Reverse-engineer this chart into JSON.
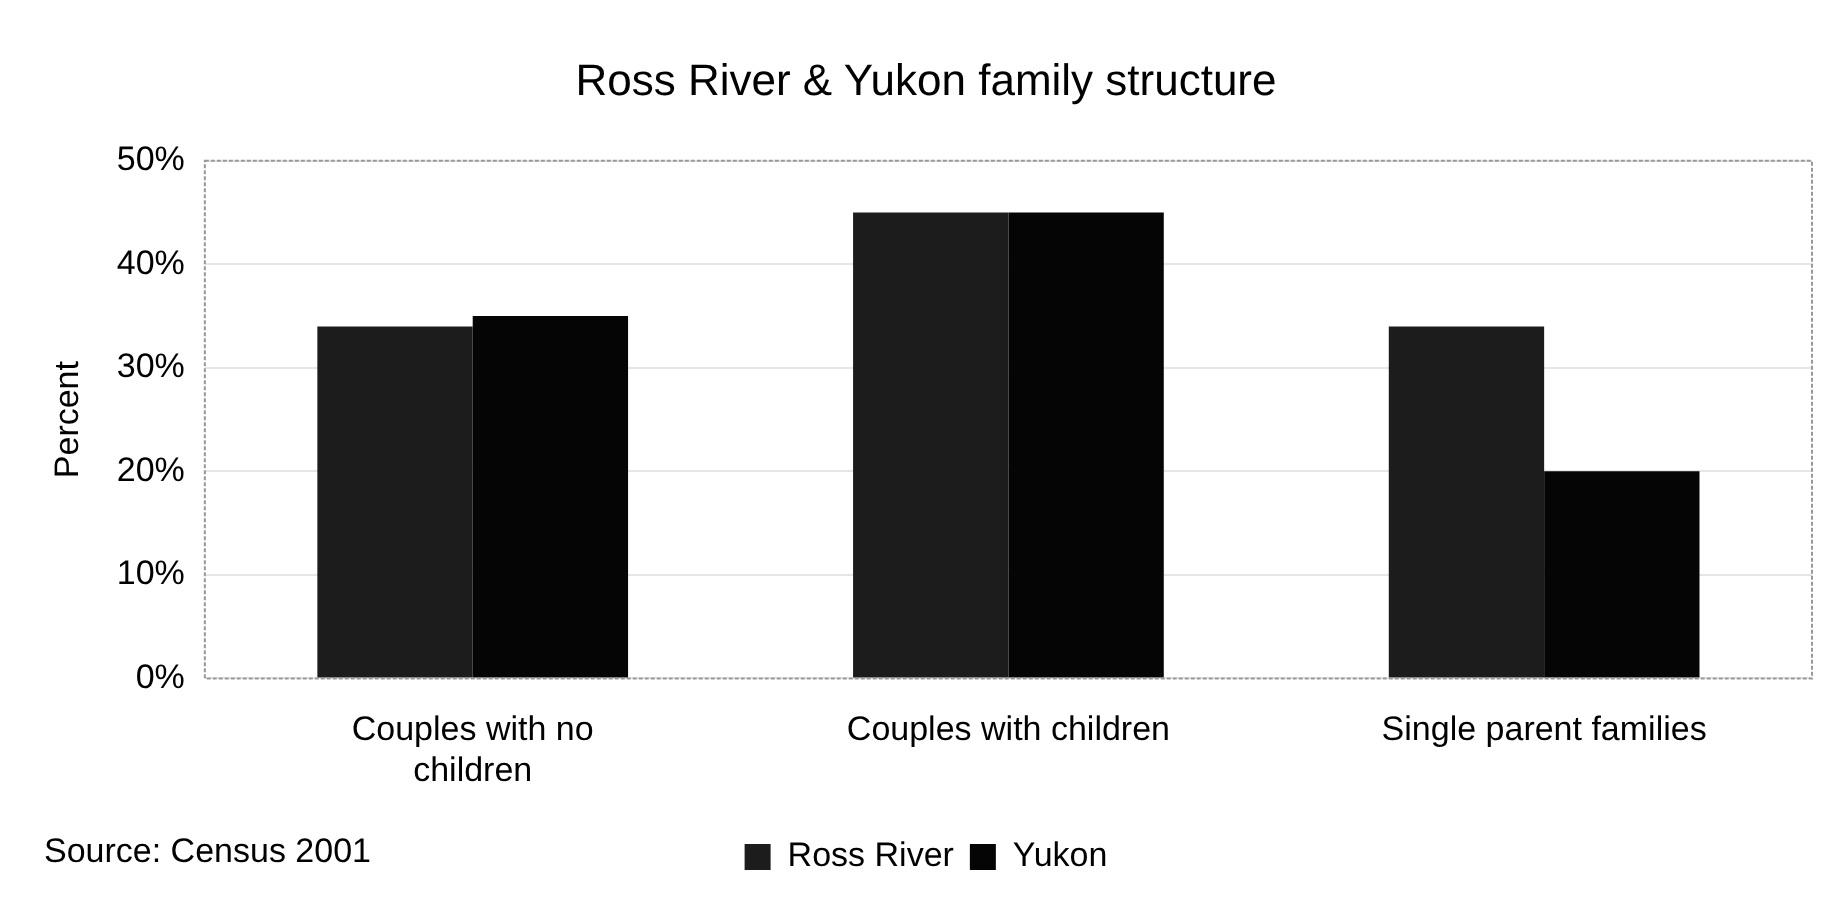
{
  "chart_data": {
    "type": "bar",
    "title": "Ross River & Yukon family structure",
    "ylabel": "Percent",
    "categories": [
      "Couples with no children",
      "Couples with children",
      "Single parent families"
    ],
    "series": [
      {
        "name": "Ross River",
        "color": "#1c1c1c",
        "values": [
          34,
          45,
          34
        ]
      },
      {
        "name": "Yukon",
        "color": "#050505",
        "values": [
          35,
          45,
          20
        ]
      }
    ],
    "ylim": [
      0,
      50
    ],
    "yticks": [
      {
        "value": 0,
        "label": "0%"
      },
      {
        "value": 10,
        "label": "10%"
      },
      {
        "value": 20,
        "label": "20%"
      },
      {
        "value": 30,
        "label": "30%"
      },
      {
        "value": 40,
        "label": "40%"
      },
      {
        "value": 50,
        "label": "50%"
      }
    ],
    "grid": "y",
    "legend": "bottom",
    "annotations": [
      "Source: Census 2001"
    ]
  }
}
